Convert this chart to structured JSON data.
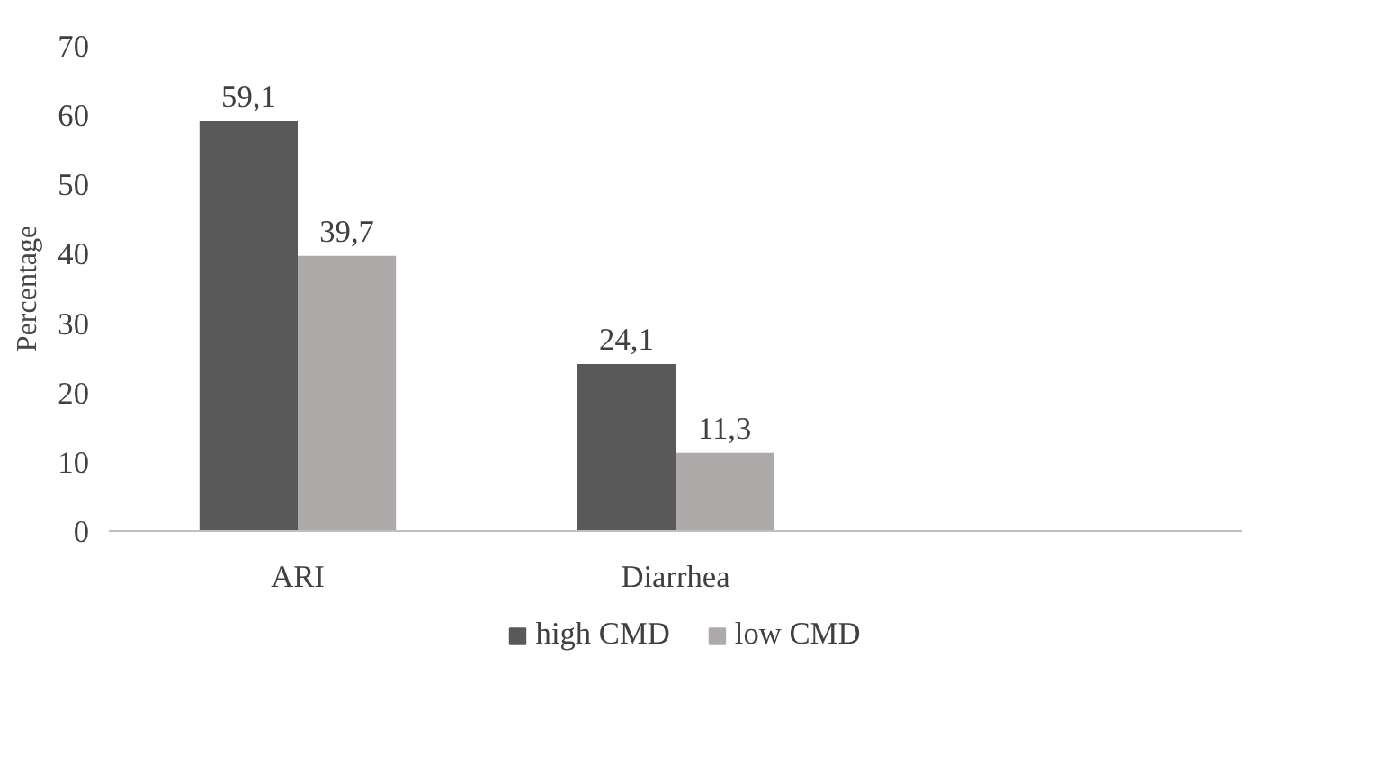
{
  "chart_data": {
    "type": "bar",
    "ylabel": "Percentage",
    "categories": [
      "ARI",
      "Diarrhea",
      null
    ],
    "series": [
      {
        "name": "high CMD",
        "color": "#595959",
        "values": [
          59.1,
          24.1,
          null
        ],
        "value_labels": [
          "59,1",
          "24,1",
          null
        ]
      },
      {
        "name": "low CMD",
        "color": "#aeaaaa",
        "values": [
          39.7,
          11.3,
          null
        ],
        "value_labels": [
          "39,7",
          "11,3",
          null
        ]
      }
    ],
    "ylim": [
      0,
      70
    ],
    "yticks": [
      0,
      10,
      20,
      30,
      40,
      50,
      60,
      70
    ],
    "grid": false,
    "legend": "bottom"
  }
}
